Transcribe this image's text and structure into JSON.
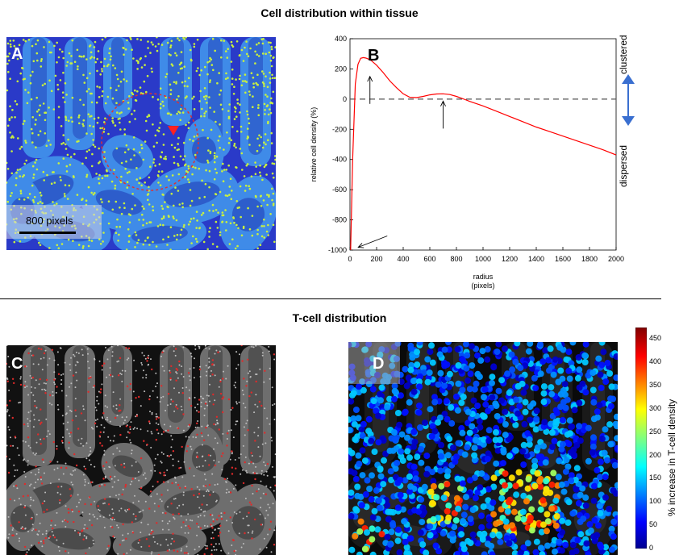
{
  "titles": {
    "top": "Cell distribution within tissue",
    "bottom": "T-cell distribution"
  },
  "panels": {
    "a": {
      "letter": "A",
      "scale_label": "800 pixels"
    },
    "b": {
      "letter": "B"
    },
    "c": {
      "letter": "C"
    },
    "d": {
      "letter": "D"
    }
  },
  "side_labels": {
    "clustered": "clustered",
    "dispersed": "dispersed"
  },
  "colorbar": {
    "label": "% increase in T-cell density",
    "ticks": [
      "450",
      "400",
      "350",
      "300",
      "250",
      "200",
      "150",
      "100",
      "50",
      "0"
    ]
  },
  "colors": {
    "curve": "#ff0000",
    "arrow": "#3a6fd0",
    "tissue_dark": "#2a3ac8",
    "tissue_light": "#3f8be8",
    "dots": "#c8f040"
  },
  "chart_data": {
    "type": "line",
    "title": "",
    "xlabel": "radius\n(pixels)",
    "xlabel_lines": [
      "radius",
      "(pixels)"
    ],
    "ylabel": "relative cell density (%)",
    "xlim": [
      0,
      2000
    ],
    "ylim": [
      -1000,
      400
    ],
    "xticks": [
      "0",
      "200",
      "400",
      "600",
      "800",
      "1000",
      "1200",
      "1400",
      "1600",
      "1800",
      "2000"
    ],
    "yticks": [
      "400",
      "200",
      "0",
      "-200",
      "-400",
      "-600",
      "-800",
      "-1000"
    ],
    "reference_line": {
      "y": 0,
      "style": "dashed"
    },
    "series": [
      {
        "x": [
          5,
          20,
          40,
          60,
          80,
          100,
          120,
          140,
          160,
          200,
          250,
          300,
          350,
          400,
          450,
          500,
          550,
          600,
          650,
          700,
          750,
          800,
          850,
          900,
          1000,
          1100,
          1200,
          1300,
          1400,
          1500,
          1600,
          1700,
          1800,
          1900,
          2000
        ],
        "y": [
          -1000,
          -400,
          100,
          230,
          270,
          275,
          272,
          265,
          255,
          225,
          175,
          120,
          75,
          35,
          12,
          10,
          18,
          28,
          34,
          35,
          30,
          18,
          2,
          -15,
          -45,
          -80,
          -115,
          -150,
          -185,
          -215,
          -245,
          -275,
          -305,
          -335,
          -370
        ]
      }
    ],
    "annotations": [
      {
        "type": "arrow",
        "at_x": 150,
        "at_y": 150
      },
      {
        "type": "arrow",
        "at_x": 700,
        "at_y": 40
      },
      {
        "type": "arrow",
        "at_x": 50,
        "at_y": -960
      }
    ]
  }
}
